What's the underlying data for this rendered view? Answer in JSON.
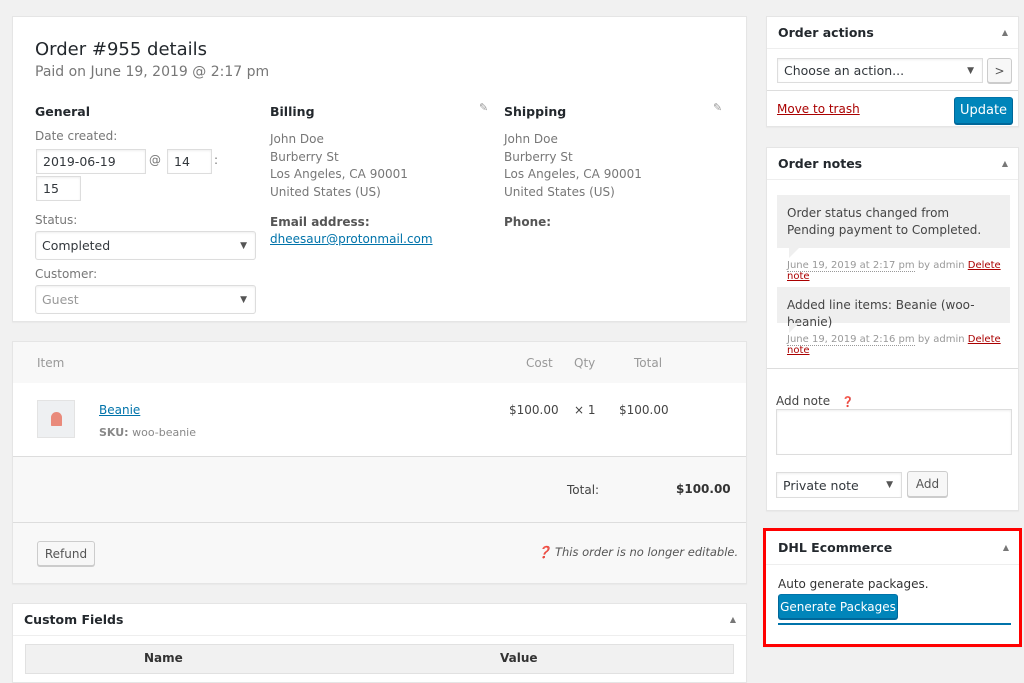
{
  "order": {
    "title": "Order #955 details",
    "subtitle": "Paid on June 19, 2019 @ 2:17 pm"
  },
  "general": {
    "heading": "General",
    "date_label": "Date created:",
    "date": "2019-06-19",
    "at": "@",
    "hour": "14",
    "colon": ":",
    "minute": "15",
    "status_label": "Status:",
    "status": "Completed",
    "customer_label": "Customer:",
    "customer": "Guest"
  },
  "billing": {
    "heading": "Billing",
    "lines": [
      "John Doe",
      "Burberry St",
      "Los Angeles, CA 90001",
      "United States (US)"
    ],
    "email_label": "Email address:",
    "email": "dheesaur@protonmail.com"
  },
  "shipping": {
    "heading": "Shipping",
    "lines": [
      "John Doe",
      "Burberry St",
      "Los Angeles, CA 90001",
      "United States (US)"
    ],
    "phone_label": "Phone:"
  },
  "items": {
    "headers": {
      "item": "Item",
      "cost": "Cost",
      "qty": "Qty",
      "total": "Total"
    },
    "rows": [
      {
        "name": "Beanie",
        "sku_label": "SKU:",
        "sku": "woo-beanie",
        "cost": "$100.00",
        "qty": "× 1",
        "total": "$100.00"
      }
    ],
    "total_label": "Total:",
    "total": "$100.00",
    "refund": "Refund",
    "not_editable": "This order is no longer editable."
  },
  "custom_fields": {
    "title": "Custom Fields",
    "name": "Name",
    "value": "Value"
  },
  "order_actions": {
    "title": "Order actions",
    "select": "Choose an action...",
    "go": ">",
    "trash": "Move to trash",
    "update": "Update"
  },
  "order_notes": {
    "title": "Order notes",
    "notes": [
      {
        "text": "Order status changed from Pending payment to Completed.",
        "date": "June 19, 2019 at 2:17 pm",
        "by": "by admin",
        "delete": "Delete note"
      },
      {
        "text": "Added line items: Beanie (woo-beanie)",
        "date": "June 19, 2019 at 2:16 pm",
        "by": "by admin",
        "delete": "Delete note"
      }
    ],
    "add_label": "Add note",
    "type": "Private note",
    "add": "Add"
  },
  "dhl": {
    "title": "DHL Ecommerce",
    "text": "Auto generate packages.",
    "button": "Generate Packages",
    "highlight_color": "#ff0000"
  },
  "colors": {
    "primary": "#0085ba",
    "link": "#0073aa",
    "delete": "#a00000"
  }
}
